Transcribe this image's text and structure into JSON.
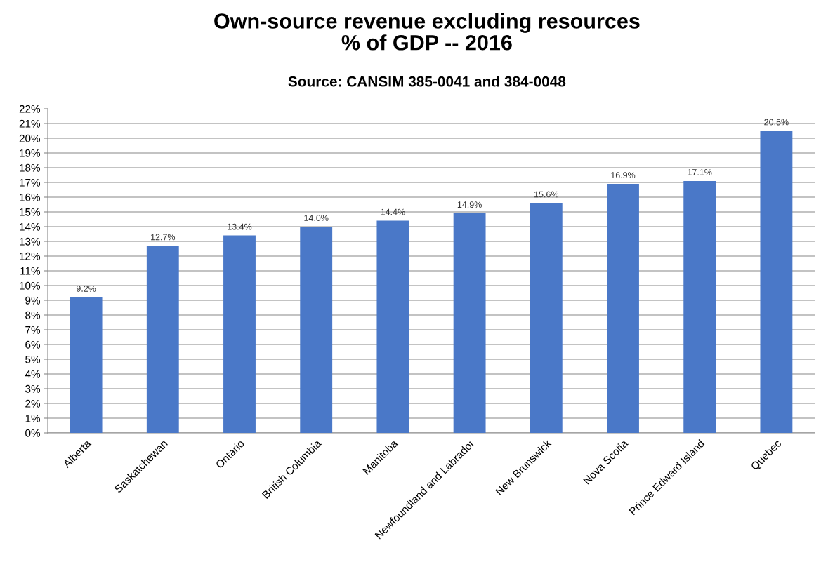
{
  "chart_data": {
    "type": "bar",
    "title": "Own-source revenue excluding resources\n% of GDP -- 2016",
    "subtitle": "Source: CANSIM 385-0041 and 384-0048",
    "categories": [
      "Alberta",
      "Saskatchewan",
      "Ontario",
      "British Columbia",
      "Manitoba",
      "Newfoundland and Labrador",
      "New Brunswick",
      "Nova Scotia",
      "Prince Edward Island",
      "Quebec"
    ],
    "values": [
      9.2,
      12.7,
      13.4,
      14.0,
      14.4,
      14.9,
      15.6,
      16.9,
      17.1,
      20.5
    ],
    "value_labels": [
      "9.2%",
      "12.7%",
      "13.4%",
      "14.0%",
      "14.4%",
      "14.9%",
      "15.6%",
      "16.9%",
      "17.1%",
      "20.5%"
    ],
    "color": "#4a78c8",
    "ylim": [
      0,
      22
    ],
    "yticks": [
      {
        "value": 0,
        "label": "0%"
      },
      {
        "value": 1,
        "label": "1%"
      },
      {
        "value": 2,
        "label": "2%"
      },
      {
        "value": 3,
        "label": "3%"
      },
      {
        "value": 4,
        "label": "4%"
      },
      {
        "value": 5,
        "label": "5%"
      },
      {
        "value": 6,
        "label": "6%"
      },
      {
        "value": 7,
        "label": "7%"
      },
      {
        "value": 8,
        "label": "8%"
      },
      {
        "value": 9,
        "label": "9%"
      },
      {
        "value": 10,
        "label": "10%"
      },
      {
        "value": 11,
        "label": "11%"
      },
      {
        "value": 12,
        "label": "12%"
      },
      {
        "value": 13,
        "label": "13%"
      },
      {
        "value": 14,
        "label": "14%"
      },
      {
        "value": 15,
        "label": "15%"
      },
      {
        "value": 16,
        "label": "16%"
      },
      {
        "value": 17,
        "label": "17%"
      },
      {
        "value": 18,
        "label": "18%"
      },
      {
        "value": 19,
        "label": "19%"
      },
      {
        "value": 20,
        "label": "20%"
      },
      {
        "value": 21,
        "label": "21%"
      },
      {
        "value": 22,
        "label": "22%"
      }
    ],
    "grid": "y"
  }
}
